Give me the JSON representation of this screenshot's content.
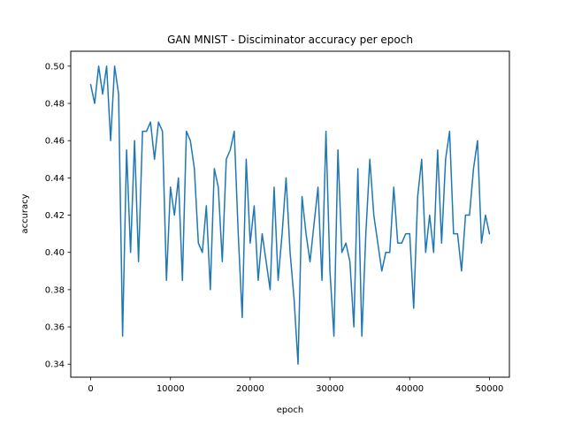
{
  "chart_data": {
    "type": "line",
    "title": "GAN MNIST - Disciminator accuracy per epoch",
    "xlabel": "epoch",
    "ylabel": "accuracy",
    "xlim": [
      -2500,
      52500
    ],
    "ylim": [
      0.333,
      0.508
    ],
    "xticks": [
      0,
      10000,
      20000,
      30000,
      40000,
      50000
    ],
    "xtick_labels": [
      "0",
      "10000",
      "20000",
      "30000",
      "40000",
      "50000"
    ],
    "yticks": [
      0.34,
      0.36,
      0.38,
      0.4,
      0.42,
      0.44,
      0.46,
      0.48,
      0.5
    ],
    "ytick_labels": [
      "0.34",
      "0.36",
      "0.38",
      "0.40",
      "0.42",
      "0.44",
      "0.46",
      "0.48",
      "0.50"
    ],
    "grid": false,
    "series": [
      {
        "color": "#1f77b4",
        "x": [
          0,
          500,
          1000,
          1500,
          2000,
          2500,
          3000,
          3500,
          4000,
          4500,
          5000,
          5500,
          6000,
          6500,
          7000,
          7500,
          8000,
          8500,
          9000,
          9500,
          10000,
          10500,
          11000,
          11500,
          12000,
          12500,
          13000,
          13500,
          14000,
          14500,
          15000,
          15500,
          16000,
          16500,
          17000,
          17500,
          18000,
          18500,
          19000,
          19500,
          20000,
          20500,
          21000,
          21500,
          22000,
          22500,
          23000,
          23500,
          24000,
          24500,
          25000,
          25500,
          26000,
          26500,
          27000,
          27500,
          28000,
          28500,
          29000,
          29500,
          30000,
          30500,
          31000,
          31500,
          32000,
          32500,
          33000,
          33500,
          34000,
          34500,
          35000,
          35500,
          36000,
          36500,
          37000,
          37500,
          38000,
          38500,
          39000,
          39500,
          40000,
          40500,
          41000,
          41500,
          42000,
          42500,
          43000,
          43500,
          44000,
          44500,
          45000,
          45500,
          46000,
          46500,
          47000,
          47500,
          48000,
          48500,
          49000,
          49500,
          50000
        ],
        "y": [
          0.49,
          0.48,
          0.5,
          0.485,
          0.5,
          0.46,
          0.5,
          0.485,
          0.355,
          0.455,
          0.4,
          0.46,
          0.395,
          0.465,
          0.465,
          0.47,
          0.45,
          0.47,
          0.465,
          0.385,
          0.435,
          0.42,
          0.44,
          0.385,
          0.465,
          0.46,
          0.445,
          0.405,
          0.4,
          0.425,
          0.38,
          0.445,
          0.435,
          0.395,
          0.45,
          0.455,
          0.465,
          0.41,
          0.365,
          0.45,
          0.405,
          0.425,
          0.385,
          0.41,
          0.395,
          0.38,
          0.435,
          0.385,
          0.41,
          0.44,
          0.4,
          0.375,
          0.34,
          0.43,
          0.41,
          0.395,
          0.415,
          0.435,
          0.385,
          0.465,
          0.39,
          0.355,
          0.455,
          0.4,
          0.405,
          0.395,
          0.36,
          0.445,
          0.355,
          0.41,
          0.45,
          0.42,
          0.405,
          0.39,
          0.4,
          0.4,
          0.435,
          0.405,
          0.405,
          0.41,
          0.41,
          0.37,
          0.43,
          0.45,
          0.4,
          0.42,
          0.4,
          0.455,
          0.405,
          0.45,
          0.465,
          0.41,
          0.41,
          0.39,
          0.42,
          0.42,
          0.445,
          0.46,
          0.405,
          0.42,
          0.41
        ]
      }
    ]
  }
}
